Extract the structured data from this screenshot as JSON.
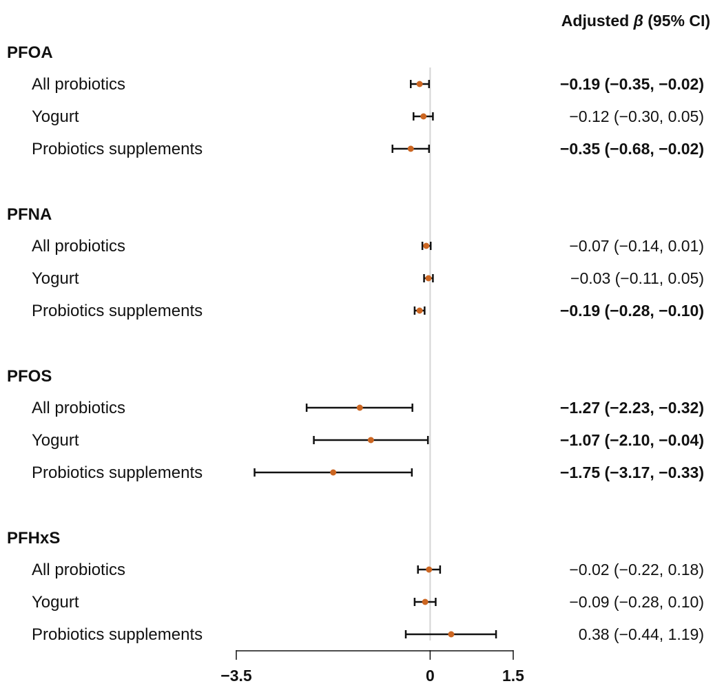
{
  "chart_data": {
    "type": "forest",
    "header": {
      "prefix": "Adjusted ",
      "symbol": "β",
      "suffix": " (95% CI)"
    },
    "xlim": [
      -3.5,
      1.5
    ],
    "ticks": [
      {
        "value": -3.5,
        "label": "−3.5"
      },
      {
        "value": 0,
        "label": "0"
      },
      {
        "value": 1.5,
        "label": "1.5"
      }
    ],
    "reference_line": 0,
    "point_color": "#cc6622",
    "groups": [
      {
        "name": "PFOA",
        "rows": [
          {
            "label": "All probiotics",
            "estimate": -0.19,
            "lower": -0.35,
            "upper": -0.02,
            "text": "−0.19 (−0.35, −0.02)",
            "bold": true
          },
          {
            "label": "Yogurt",
            "estimate": -0.12,
            "lower": -0.3,
            "upper": 0.05,
            "text": "−0.12 (−0.30, 0.05)",
            "bold": false
          },
          {
            "label": "Probiotics supplements",
            "estimate": -0.35,
            "lower": -0.68,
            "upper": -0.02,
            "text": "−0.35 (−0.68, −0.02)",
            "bold": true
          }
        ]
      },
      {
        "name": "PFNA",
        "rows": [
          {
            "label": "All probiotics",
            "estimate": -0.07,
            "lower": -0.14,
            "upper": 0.01,
            "text": "−0.07 (−0.14, 0.01)",
            "bold": false
          },
          {
            "label": "Yogurt",
            "estimate": -0.03,
            "lower": -0.11,
            "upper": 0.05,
            "text": "−0.03 (−0.11, 0.05)",
            "bold": false
          },
          {
            "label": "Probiotics supplements",
            "estimate": -0.19,
            "lower": -0.28,
            "upper": -0.1,
            "text": "−0.19 (−0.28, −0.10)",
            "bold": true
          }
        ]
      },
      {
        "name": "PFOS",
        "rows": [
          {
            "label": "All probiotics",
            "estimate": -1.27,
            "lower": -2.23,
            "upper": -0.32,
            "text": "−1.27 (−2.23, −0.32)",
            "bold": true
          },
          {
            "label": "Yogurt",
            "estimate": -1.07,
            "lower": -2.1,
            "upper": -0.04,
            "text": "−1.07 (−2.10, −0.04)",
            "bold": true
          },
          {
            "label": "Probiotics supplements",
            "estimate": -1.75,
            "lower": -3.17,
            "upper": -0.33,
            "text": "−1.75 (−3.17, −0.33)",
            "bold": true
          }
        ]
      },
      {
        "name": "PFHxS",
        "rows": [
          {
            "label": "All probiotics",
            "estimate": -0.02,
            "lower": -0.22,
            "upper": 0.18,
            "text": "−0.02 (−0.22, 0.18)",
            "bold": false
          },
          {
            "label": "Yogurt",
            "estimate": -0.09,
            "lower": -0.28,
            "upper": 0.1,
            "text": "−0.09 (−0.28, 0.10)",
            "bold": false
          },
          {
            "label": "Probiotics supplements",
            "estimate": 0.38,
            "lower": -0.44,
            "upper": 1.19,
            "text": "0.38 (−0.44, 1.19)",
            "bold": false
          }
        ]
      }
    ]
  }
}
